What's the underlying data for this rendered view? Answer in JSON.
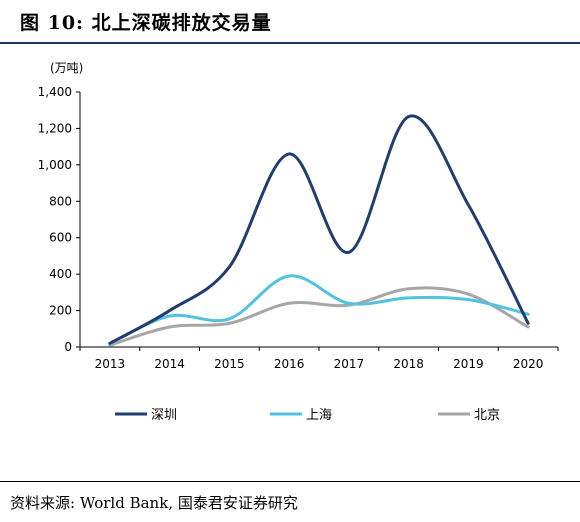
{
  "title": "图 10:  北上深碳排放交易量",
  "source": "资料来源: World Bank, 国泰君安证券研究",
  "chart_data": {
    "type": "line",
    "unit_label": "(万吨)",
    "categories": [
      "2013",
      "2014",
      "2015",
      "2016",
      "2017",
      "2018",
      "2019",
      "2020"
    ],
    "ylim": [
      0,
      1400
    ],
    "yticks": [
      "0",
      "200",
      "400",
      "600",
      "800",
      "1,000",
      "1,200",
      "1,400"
    ],
    "ytick_values": [
      0,
      200,
      400,
      600,
      800,
      1000,
      1200,
      1400
    ],
    "grid": false,
    "legend_position": "bottom",
    "series": [
      {
        "name": "深圳",
        "color": "#1f3d6e",
        "values": [
          20,
          200,
          440,
          1060,
          520,
          1265,
          780,
          130
        ]
      },
      {
        "name": "上海",
        "color": "#4fc3e0",
        "values": [
          20,
          170,
          155,
          390,
          240,
          270,
          260,
          180
        ]
      },
      {
        "name": "北京",
        "color": "#a6a6a6",
        "values": [
          10,
          110,
          130,
          240,
          230,
          320,
          290,
          110
        ]
      }
    ]
  }
}
